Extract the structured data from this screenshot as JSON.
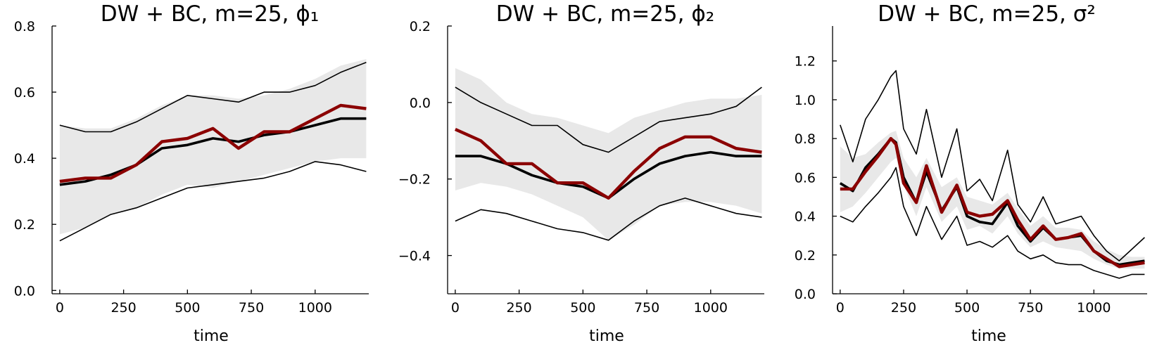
{
  "chart_data": [
    {
      "type": "line",
      "title": "DW + BC, m=25, ϕ₁",
      "xlabel": "time",
      "ylabel": "",
      "xlim": [
        -30,
        1210
      ],
      "ylim": [
        -0.01,
        0.8
      ],
      "xticks": [
        0,
        250,
        500,
        750,
        1000
      ],
      "yticks": [
        0.0,
        0.2,
        0.4,
        0.6,
        0.8
      ],
      "ytick_labels": [
        "0.0",
        "0.2",
        "0.4",
        "0.6",
        "0.8"
      ],
      "grid": false,
      "x": [
        0,
        100,
        200,
        300,
        400,
        500,
        600,
        700,
        800,
        900,
        1000,
        1100,
        1200
      ],
      "band_upper": [
        0.5,
        0.49,
        0.49,
        0.52,
        0.56,
        0.59,
        0.59,
        0.58,
        0.59,
        0.61,
        0.64,
        0.68,
        0.7
      ],
      "band_lower": [
        0.17,
        0.19,
        0.23,
        0.25,
        0.29,
        0.32,
        0.31,
        0.33,
        0.35,
        0.37,
        0.39,
        0.4,
        0.4
      ],
      "series": [
        {
          "values": [
            0.5,
            0.48,
            0.48,
            0.51,
            0.55,
            0.59,
            0.58,
            0.57,
            0.6,
            0.6,
            0.62,
            0.66,
            0.69
          ]
        },
        {
          "values": [
            0.15,
            0.19,
            0.23,
            0.25,
            0.28,
            0.31,
            0.32,
            0.33,
            0.34,
            0.36,
            0.39,
            0.38,
            0.36
          ]
        },
        {
          "values": [
            0.32,
            0.33,
            0.35,
            0.38,
            0.43,
            0.44,
            0.46,
            0.45,
            0.47,
            0.48,
            0.5,
            0.52,
            0.52
          ]
        },
        {
          "values": [
            0.33,
            0.34,
            0.34,
            0.38,
            0.45,
            0.46,
            0.49,
            0.43,
            0.48,
            0.48,
            0.52,
            0.56,
            0.55
          ]
        }
      ]
    },
    {
      "type": "line",
      "title": "DW + BC, m=25, ϕ₂",
      "xlabel": "time",
      "ylabel": "",
      "xlim": [
        -30,
        1210
      ],
      "ylim": [
        -0.5,
        0.2
      ],
      "xticks": [
        0,
        250,
        500,
        750,
        1000
      ],
      "yticks": [
        -0.4,
        -0.2,
        0.0,
        0.2
      ],
      "ytick_labels": [
        "−0.4",
        "−0.2",
        "0.0",
        "0.2"
      ],
      "grid": false,
      "x": [
        0,
        100,
        200,
        300,
        400,
        500,
        600,
        700,
        800,
        900,
        1000,
        1100,
        1200
      ],
      "band_upper": [
        0.09,
        0.06,
        0.0,
        -0.03,
        -0.04,
        -0.06,
        -0.08,
        -0.04,
        -0.02,
        0.0,
        0.01,
        0.01,
        0.02
      ],
      "band_lower": [
        -0.23,
        -0.21,
        -0.22,
        -0.24,
        -0.27,
        -0.3,
        -0.36,
        -0.32,
        -0.27,
        -0.26,
        -0.26,
        -0.27,
        -0.29
      ],
      "series": [
        {
          "values": [
            0.04,
            0.0,
            -0.03,
            -0.06,
            -0.06,
            -0.11,
            -0.13,
            -0.09,
            -0.05,
            -0.04,
            -0.03,
            -0.01,
            0.04
          ]
        },
        {
          "values": [
            -0.31,
            -0.28,
            -0.29,
            -0.31,
            -0.33,
            -0.34,
            -0.36,
            -0.31,
            -0.27,
            -0.25,
            -0.27,
            -0.29,
            -0.3
          ]
        },
        {
          "values": [
            -0.14,
            -0.14,
            -0.16,
            -0.19,
            -0.21,
            -0.22,
            -0.25,
            -0.2,
            -0.16,
            -0.14,
            -0.13,
            -0.14,
            -0.14
          ]
        },
        {
          "values": [
            -0.07,
            -0.1,
            -0.16,
            -0.16,
            -0.21,
            -0.21,
            -0.25,
            -0.18,
            -0.12,
            -0.09,
            -0.09,
            -0.12,
            -0.13
          ]
        }
      ]
    },
    {
      "type": "line",
      "title": "DW + BC, m=25, σ²",
      "xlabel": "time",
      "ylabel": "",
      "xlim": [
        -30,
        1210
      ],
      "ylim": [
        0.0,
        1.38
      ],
      "xticks": [
        0,
        250,
        500,
        750,
        1000
      ],
      "yticks": [
        0.0,
        0.2,
        0.4,
        0.6,
        0.8,
        1.0,
        1.2
      ],
      "ytick_labels": [
        "0.0",
        "0.2",
        "0.4",
        "0.6",
        "0.8",
        "1.0",
        "1.2"
      ],
      "grid": false,
      "x": [
        0,
        50,
        100,
        150,
        200,
        220,
        250,
        300,
        340,
        400,
        460,
        500,
        550,
        600,
        660,
        700,
        750,
        800,
        850,
        900,
        950,
        1000,
        1050,
        1100,
        1150,
        1200
      ],
      "band_upper": [
        0.76,
        0.7,
        0.72,
        0.78,
        0.83,
        0.84,
        0.7,
        0.6,
        0.7,
        0.55,
        0.6,
        0.5,
        0.48,
        0.46,
        0.52,
        0.44,
        0.35,
        0.4,
        0.34,
        0.34,
        0.33,
        0.27,
        0.23,
        0.2,
        0.19,
        0.19
      ],
      "band_lower": [
        0.42,
        0.45,
        0.52,
        0.6,
        0.68,
        0.7,
        0.56,
        0.4,
        0.55,
        0.37,
        0.45,
        0.33,
        0.35,
        0.31,
        0.4,
        0.31,
        0.24,
        0.27,
        0.24,
        0.23,
        0.22,
        0.18,
        0.15,
        0.13,
        0.13,
        0.13
      ],
      "series": [
        {
          "values": [
            0.87,
            0.68,
            0.9,
            1.0,
            1.12,
            1.15,
            0.85,
            0.72,
            0.95,
            0.6,
            0.85,
            0.53,
            0.59,
            0.48,
            0.74,
            0.46,
            0.37,
            0.5,
            0.36,
            0.38,
            0.4,
            0.3,
            0.22,
            0.17,
            0.23,
            0.29
          ]
        },
        {
          "values": [
            0.4,
            0.37,
            0.45,
            0.52,
            0.6,
            0.65,
            0.45,
            0.3,
            0.45,
            0.28,
            0.4,
            0.25,
            0.27,
            0.24,
            0.3,
            0.22,
            0.18,
            0.2,
            0.16,
            0.15,
            0.15,
            0.12,
            0.1,
            0.08,
            0.1,
            0.1
          ]
        },
        {
          "values": [
            0.57,
            0.53,
            0.65,
            0.72,
            0.8,
            0.78,
            0.6,
            0.47,
            0.63,
            0.43,
            0.55,
            0.4,
            0.37,
            0.36,
            0.47,
            0.35,
            0.27,
            0.34,
            0.28,
            0.29,
            0.3,
            0.22,
            0.17,
            0.15,
            0.16,
            0.17
          ]
        },
        {
          "values": [
            0.54,
            0.54,
            0.63,
            0.71,
            0.8,
            0.77,
            0.57,
            0.47,
            0.66,
            0.42,
            0.56,
            0.42,
            0.4,
            0.41,
            0.48,
            0.38,
            0.28,
            0.35,
            0.28,
            0.29,
            0.31,
            0.22,
            0.18,
            0.14,
            0.15,
            0.16
          ]
        }
      ]
    }
  ],
  "colors": {
    "band": "#e8e8e8",
    "thin": "#000000",
    "mean": "#000000",
    "highlight": "#8b0000"
  }
}
